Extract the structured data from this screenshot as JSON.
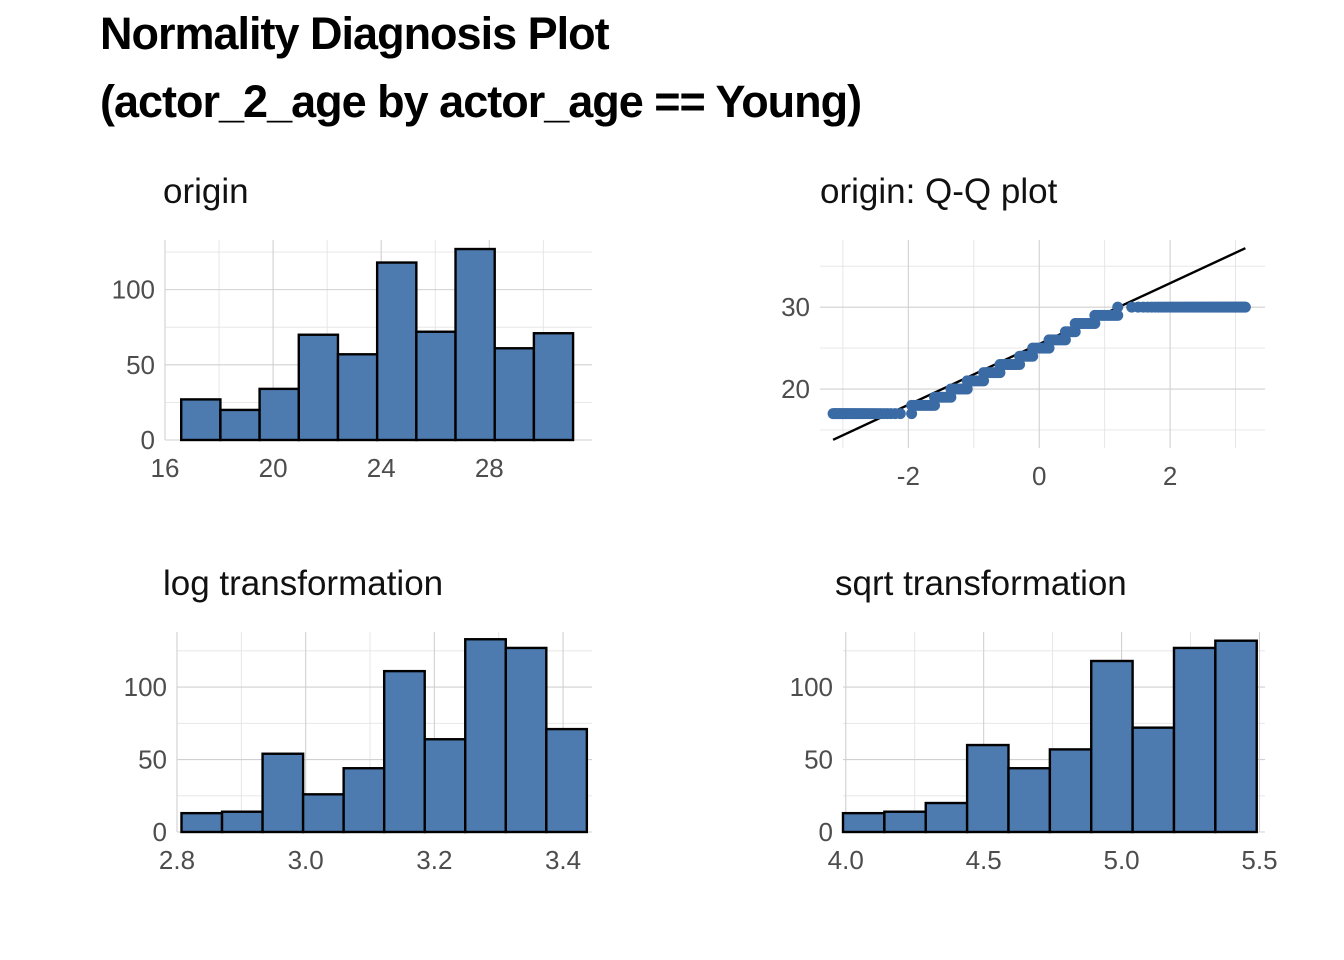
{
  "page": {
    "title_line1": "Normality Diagnosis Plot",
    "title_line2": "(actor_2_age by actor_age == Young)"
  },
  "colors": {
    "bar_fill": "#4E7BAF",
    "bar_stroke": "#000000",
    "point": "#3B6BA5",
    "line": "#000000",
    "grid": "#d0d0d0"
  },
  "chart_data": [
    {
      "type": "bar",
      "title": "origin",
      "xlabel": "",
      "ylabel": "",
      "x_ticks": [
        16,
        20,
        24,
        28
      ],
      "x_tick_labels": [
        "16",
        "20",
        "24",
        "28"
      ],
      "y_ticks": [
        0,
        50,
        100
      ],
      "y_tick_labels": [
        "0",
        "50",
        "100"
      ],
      "xlim": [
        16,
        31.8
      ],
      "ylim": [
        0,
        133
      ],
      "bins": [
        {
          "x0": 16.6,
          "x1": 18.05,
          "count": 27
        },
        {
          "x0": 18.05,
          "x1": 19.5,
          "count": 20
        },
        {
          "x0": 19.5,
          "x1": 20.95,
          "count": 34
        },
        {
          "x0": 20.95,
          "x1": 22.4,
          "count": 70
        },
        {
          "x0": 22.4,
          "x1": 23.85,
          "count": 57
        },
        {
          "x0": 23.85,
          "x1": 25.3,
          "count": 118
        },
        {
          "x0": 25.3,
          "x1": 26.75,
          "count": 72
        },
        {
          "x0": 26.75,
          "x1": 28.2,
          "count": 127
        },
        {
          "x0": 28.2,
          "x1": 29.65,
          "count": 61
        },
        {
          "x0": 29.65,
          "x1": 31.1,
          "count": 71
        }
      ]
    },
    {
      "type": "scatter",
      "title": "origin: Q-Q plot",
      "xlabel": "",
      "ylabel": "",
      "x_ticks": [
        -2,
        0,
        2
      ],
      "x_tick_labels": [
        "-2",
        "0",
        "2"
      ],
      "y_ticks": [
        20,
        30
      ],
      "y_tick_labels": [
        "20",
        "30"
      ],
      "xlim": [
        -3.35,
        3.45
      ],
      "ylim": [
        12.8,
        38.2
      ],
      "reference_line": {
        "x": [
          -3.15,
          3.15
        ],
        "y": [
          13.8,
          37.2
        ]
      },
      "points_by_value": [
        {
          "y": 17,
          "x_from": -3.15,
          "x_to": -1.95
        },
        {
          "y": 18,
          "x_from": -1.95,
          "x_to": -1.6
        },
        {
          "y": 19,
          "x_from": -1.6,
          "x_to": -1.35
        },
        {
          "y": 20,
          "x_from": -1.35,
          "x_to": -1.1
        },
        {
          "y": 21,
          "x_from": -1.1,
          "x_to": -0.85
        },
        {
          "y": 22,
          "x_from": -0.85,
          "x_to": -0.6
        },
        {
          "y": 23,
          "x_from": -0.6,
          "x_to": -0.3
        },
        {
          "y": 24,
          "x_from": -0.3,
          "x_to": -0.1
        },
        {
          "y": 25,
          "x_from": -0.1,
          "x_to": 0.15
        },
        {
          "y": 26,
          "x_from": 0.15,
          "x_to": 0.4
        },
        {
          "y": 27,
          "x_from": 0.4,
          "x_to": 0.55
        },
        {
          "y": 28,
          "x_from": 0.55,
          "x_to": 0.85
        },
        {
          "y": 29,
          "x_from": 0.85,
          "x_to": 1.2
        },
        {
          "y": 30,
          "x_from": 1.2,
          "x_to": 3.15
        }
      ]
    },
    {
      "type": "bar",
      "title": "log transformation",
      "xlabel": "",
      "ylabel": "",
      "x_ticks": [
        2.8,
        3.0,
        3.2,
        3.4
      ],
      "x_tick_labels": [
        "2.8",
        "3.0",
        "3.2",
        "3.4"
      ],
      "y_ticks": [
        0,
        50,
        100
      ],
      "y_tick_labels": [
        "0",
        "50",
        "100"
      ],
      "xlim": [
        2.8,
        3.445
      ],
      "ylim": [
        0,
        138
      ],
      "bins": [
        {
          "x0": 2.807,
          "x1": 2.87,
          "count": 13
        },
        {
          "x0": 2.87,
          "x1": 2.933,
          "count": 14
        },
        {
          "x0": 2.933,
          "x1": 2.996,
          "count": 54
        },
        {
          "x0": 2.996,
          "x1": 3.059,
          "count": 26
        },
        {
          "x0": 3.059,
          "x1": 3.122,
          "count": 44
        },
        {
          "x0": 3.122,
          "x1": 3.185,
          "count": 111
        },
        {
          "x0": 3.185,
          "x1": 3.248,
          "count": 64
        },
        {
          "x0": 3.248,
          "x1": 3.311,
          "count": 133
        },
        {
          "x0": 3.311,
          "x1": 3.374,
          "count": 127
        },
        {
          "x0": 3.374,
          "x1": 3.437,
          "count": 71
        }
      ]
    },
    {
      "type": "bar",
      "title": "sqrt transformation",
      "xlabel": "",
      "ylabel": "",
      "x_ticks": [
        4.0,
        4.5,
        5.0,
        5.5
      ],
      "x_tick_labels": [
        "4.0",
        "4.5",
        "5.0",
        "5.5"
      ],
      "y_ticks": [
        0,
        50,
        100
      ],
      "y_tick_labels": [
        "0",
        "50",
        "100"
      ],
      "xlim": [
        3.99,
        5.52
      ],
      "ylim": [
        0,
        138
      ],
      "bins": [
        {
          "x0": 3.99,
          "x1": 4.14,
          "count": 13
        },
        {
          "x0": 4.14,
          "x1": 4.29,
          "count": 14
        },
        {
          "x0": 4.29,
          "x1": 4.44,
          "count": 20
        },
        {
          "x0": 4.44,
          "x1": 4.59,
          "count": 60
        },
        {
          "x0": 4.59,
          "x1": 4.74,
          "count": 44
        },
        {
          "x0": 4.74,
          "x1": 4.89,
          "count": 57
        },
        {
          "x0": 4.89,
          "x1": 5.04,
          "count": 118
        },
        {
          "x0": 5.04,
          "x1": 5.19,
          "count": 72
        },
        {
          "x0": 5.19,
          "x1": 5.34,
          "count": 127
        },
        {
          "x0": 5.34,
          "x1": 5.49,
          "count": 132
        }
      ]
    }
  ]
}
